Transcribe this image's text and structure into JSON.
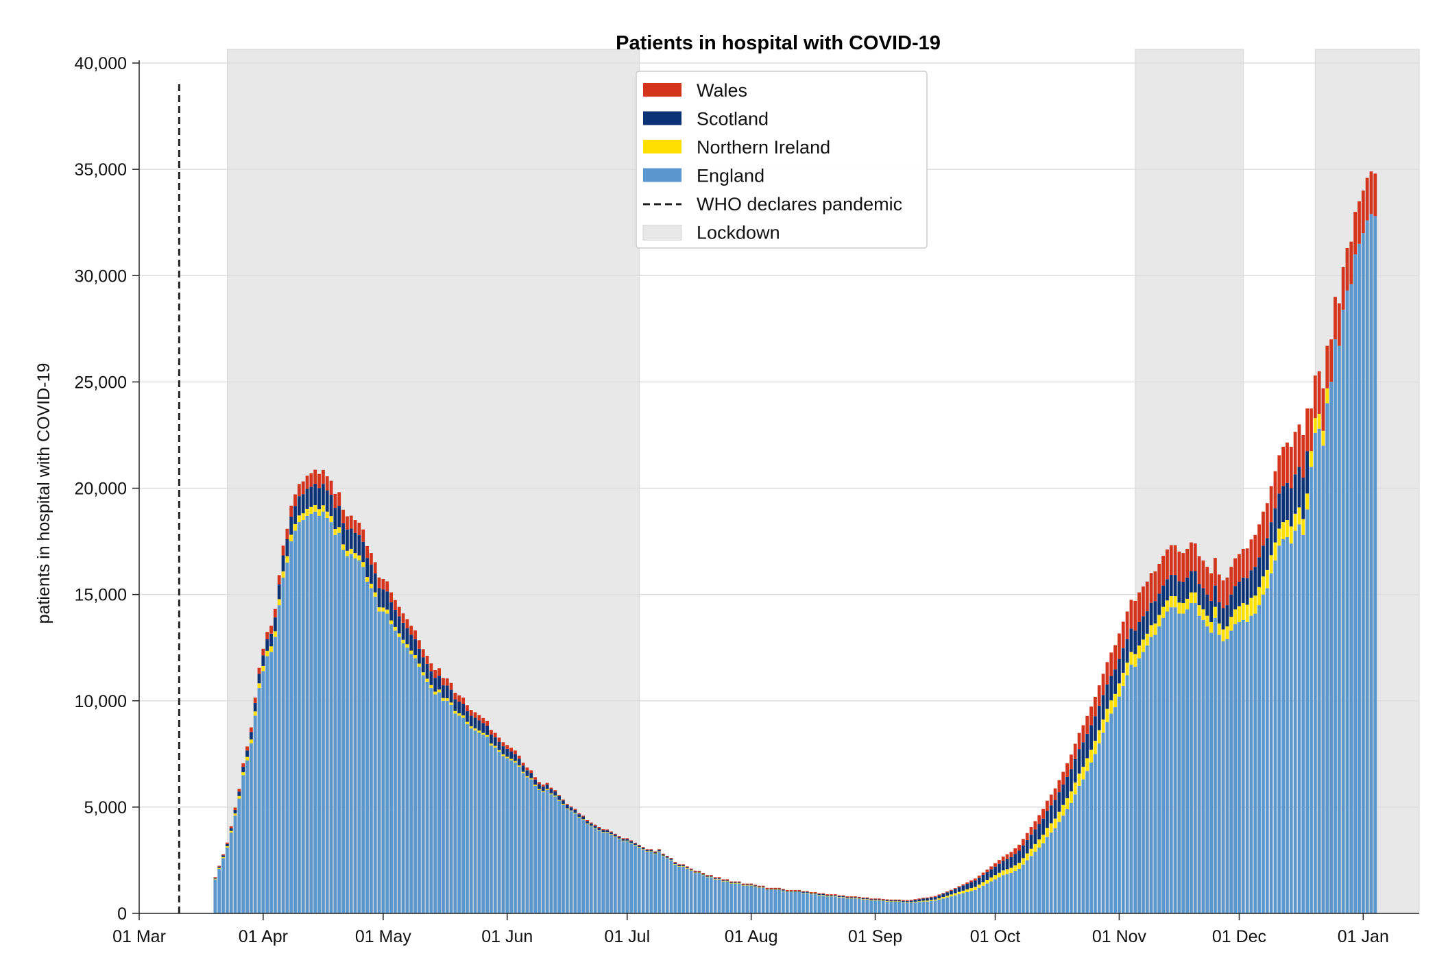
{
  "chart_data": {
    "type": "bar",
    "stacked": true,
    "title": "Patients in hospital with COVID-19",
    "xlabel": "",
    "ylabel": "patients in hospital with COVID-19",
    "ylim": [
      0,
      40000
    ],
    "yticks": [
      0,
      5000,
      10000,
      15000,
      20000,
      25000,
      30000,
      35000,
      40000
    ],
    "ytick_labels": [
      "0",
      "5,000",
      "10,000",
      "15,000",
      "20,000",
      "25,000",
      "30,000",
      "35,000",
      "40,000"
    ],
    "xlim": [
      "2020-03-01",
      "2021-01-15"
    ],
    "xticks": [
      "2020-03-01",
      "2020-04-01",
      "2020-05-01",
      "2020-06-01",
      "2020-07-01",
      "2020-08-01",
      "2020-09-01",
      "2020-10-01",
      "2020-11-01",
      "2020-12-01",
      "2021-01-01"
    ],
    "xtick_labels": [
      "01 Mar",
      "01 Apr",
      "01 May",
      "01 Jun",
      "01 Jul",
      "01 Aug",
      "01 Sep",
      "01 Oct",
      "01 Nov",
      "01 Dec",
      "01 Jan"
    ],
    "grid": "horizontal",
    "legend_position": "top-center",
    "legend": [
      "Wales",
      "Scotland",
      "Northern Ireland",
      "England",
      "WHO declares pandemic",
      "Lockdown"
    ],
    "who_pandemic_date": "2020-03-11",
    "lockdowns": [
      {
        "start": "2020-03-23",
        "end": "2020-07-04"
      },
      {
        "start": "2020-11-05",
        "end": "2020-12-02"
      },
      {
        "start": "2020-12-20",
        "end": "2021-01-15"
      }
    ],
    "colors": {
      "England": "#5b96cc",
      "Northern Ireland": "#ffe000",
      "Scotland": "#0b3275",
      "Wales": "#d4341c",
      "who_line": "#222222",
      "lockdown": "#e8e8e8",
      "grid": "#dddddd"
    },
    "series_order": [
      "England",
      "Northern Ireland",
      "Scotland",
      "Wales"
    ],
    "series": [
      {
        "name": "England",
        "start": "2020-03-20",
        "values": [
          1600,
          2100,
          2600,
          3100,
          3800,
          4600,
          5400,
          6500,
          7200,
          8000,
          9300,
          10600,
          11400,
          12100,
          12300,
          13000,
          14500,
          15800,
          16500,
          17500,
          18000,
          18400,
          18500,
          18700,
          18800,
          18900,
          18700,
          18900,
          18600,
          18400,
          17800,
          17900,
          17100,
          16800,
          16900,
          16700,
          16600,
          16300,
          15600,
          15300,
          14900,
          14200,
          14200,
          14100,
          13600,
          13300,
          13000,
          12700,
          12500,
          12200,
          12000,
          11600,
          11200,
          10900,
          10600,
          10300,
          10400,
          10000,
          10000,
          9800,
          9400,
          9300,
          9200,
          8900,
          8700,
          8600,
          8500,
          8400,
          8300,
          7900,
          7800,
          7600,
          7400,
          7300,
          7200,
          7100,
          6900,
          6600,
          6400,
          6300,
          6000,
          5800,
          5700,
          5800,
          5600,
          5500,
          5300,
          5100,
          4900,
          4800,
          4700,
          4500,
          4400,
          4200,
          4100,
          4000,
          3900,
          3800,
          3800,
          3700,
          3600,
          3500,
          3400,
          3400,
          3300,
          3200,
          3100,
          3000,
          2900,
          2900,
          2800,
          2900,
          2700,
          2600,
          2500,
          2300,
          2200,
          2200,
          2100,
          2000,
          1900,
          1900,
          1800,
          1700,
          1700,
          1600,
          1600,
          1500,
          1500,
          1400,
          1400,
          1400,
          1300,
          1300,
          1300,
          1250,
          1200,
          1200,
          1100,
          1100,
          1100,
          1100,
          1050,
          1000,
          1000,
          1000,
          1000,
          950,
          950,
          900,
          900,
          850,
          850,
          800,
          800,
          800,
          750,
          750,
          700,
          700,
          700,
          680,
          650,
          650,
          600,
          600,
          600,
          580,
          560,
          550,
          550,
          550,
          520,
          500,
          500,
          520,
          540,
          560,
          560,
          580,
          600,
          650,
          700,
          750,
          800,
          850,
          900,
          950,
          1000,
          1050,
          1100,
          1200,
          1300,
          1400,
          1500,
          1600,
          1700,
          1800,
          1850,
          1900,
          2000,
          2100,
          2300,
          2500,
          2700,
          2900,
          3100,
          3300,
          3600,
          3800,
          4000,
          4300,
          4600,
          4900,
          5200,
          5600,
          6000,
          6300,
          6700,
          7100,
          7500,
          8000,
          8500,
          9000,
          9400,
          9700,
          10200,
          10700,
          11200,
          11700,
          11600,
          12000,
          12300,
          12600,
          13000,
          13100,
          13500,
          13900,
          14200,
          14400,
          14400,
          14100,
          14100,
          14300,
          14600,
          14600,
          14000,
          13800,
          13500,
          13200,
          13900,
          13100,
          12800,
          12900,
          13300,
          13600,
          13700,
          13800,
          13700,
          14000,
          14100,
          14500,
          15000,
          15300,
          16000,
          16600,
          17300,
          17600,
          17700,
          17400,
          18000,
          18300,
          17800,
          19000,
          21000,
          22600,
          22800,
          22000,
          24000,
          25000,
          27000,
          26700,
          28400,
          29300,
          29600,
          31000,
          31500,
          32000,
          32600,
          32900,
          32800
        ]
      },
      {
        "name": "Northern Ireland",
        "start": "2020-03-20",
        "values": [
          30,
          40,
          50,
          60,
          80,
          100,
          120,
          140,
          160,
          180,
          200,
          220,
          240,
          250,
          260,
          270,
          280,
          290,
          300,
          310,
          310,
          320,
          320,
          320,
          320,
          310,
          310,
          300,
          300,
          290,
          280,
          270,
          260,
          260,
          250,
          250,
          240,
          230,
          220,
          210,
          200,
          200,
          190,
          190,
          180,
          180,
          170,
          170,
          160,
          160,
          150,
          150,
          140,
          140,
          140,
          130,
          130,
          130,
          120,
          120,
          120,
          110,
          110,
          110,
          100,
          100,
          100,
          90,
          90,
          90,
          80,
          80,
          80,
          70,
          70,
          70,
          60,
          60,
          60,
          55,
          55,
          50,
          50,
          50,
          45,
          45,
          40,
          40,
          40,
          40,
          35,
          35,
          35,
          35,
          30,
          30,
          30,
          30,
          30,
          30,
          25,
          25,
          25,
          25,
          25,
          25,
          25,
          20,
          20,
          20,
          20,
          20,
          20,
          20,
          20,
          20,
          20,
          20,
          20,
          20,
          20,
          20,
          20,
          20,
          20,
          20,
          20,
          20,
          20,
          20,
          20,
          20,
          20,
          20,
          20,
          20,
          20,
          20,
          20,
          20,
          20,
          20,
          20,
          20,
          20,
          20,
          20,
          20,
          20,
          20,
          20,
          20,
          20,
          20,
          20,
          20,
          20,
          20,
          20,
          20,
          20,
          20,
          20,
          20,
          20,
          20,
          20,
          20,
          20,
          20,
          20,
          20,
          20,
          25,
          25,
          30,
          30,
          35,
          40,
          45,
          50,
          60,
          70,
          80,
          90,
          100,
          110,
          120,
          130,
          140,
          150,
          160,
          170,
          180,
          190,
          200,
          210,
          220,
          230,
          240,
          260,
          280,
          300,
          320,
          340,
          360,
          380,
          400,
          420,
          440,
          460,
          480,
          500,
          520,
          540,
          560,
          580,
          600,
          600,
          600,
          620,
          620,
          620,
          620,
          620,
          620,
          620,
          620,
          600,
          600,
          600,
          600,
          580,
          560,
          560,
          540,
          540,
          520,
          520,
          520,
          520,
          520,
          500,
          500,
          500,
          500,
          500,
          500,
          500,
          500,
          520,
          540,
          560,
          600,
          650,
          700,
          750,
          800,
          820,
          840,
          850,
          850,
          850,
          850,
          850,
          850,
          800,
          800,
          800,
          800,
          800,
          800,
          750,
          750,
          750,
          700,
          700,
          700,
          700
        ]
      },
      {
        "name": "Scotland",
        "start": "2020-03-20",
        "values": [
          40,
          60,
          80,
          100,
          130,
          170,
          210,
          260,
          300,
          350,
          400,
          450,
          500,
          550,
          600,
          650,
          700,
          750,
          800,
          850,
          850,
          900,
          900,
          950,
          950,
          1000,
          1000,
          1000,
          1000,
          1000,
          1000,
          1000,
          1000,
          1000,
          950,
          950,
          950,
          950,
          900,
          900,
          900,
          900,
          850,
          850,
          850,
          800,
          800,
          800,
          750,
          750,
          750,
          700,
          700,
          700,
          650,
          650,
          650,
          600,
          600,
          600,
          550,
          550,
          550,
          500,
          500,
          500,
          480,
          460,
          440,
          420,
          400,
          390,
          380,
          370,
          350,
          330,
          310,
          290,
          270,
          250,
          240,
          230,
          220,
          210,
          200,
          190,
          180,
          170,
          160,
          150,
          140,
          130,
          120,
          110,
          100,
          100,
          90,
          90,
          80,
          80,
          80,
          70,
          70,
          70,
          70,
          60,
          60,
          60,
          60,
          60,
          60,
          60,
          50,
          50,
          50,
          50,
          50,
          50,
          50,
          50,
          50,
          40,
          40,
          40,
          40,
          40,
          40,
          40,
          40,
          40,
          40,
          40,
          40,
          40,
          40,
          40,
          40,
          40,
          40,
          40,
          40,
          40,
          40,
          40,
          40,
          40,
          40,
          40,
          40,
          40,
          40,
          40,
          40,
          40,
          40,
          40,
          40,
          40,
          40,
          40,
          40,
          40,
          40,
          40,
          40,
          40,
          40,
          40,
          40,
          40,
          40,
          40,
          50,
          60,
          70,
          80,
          90,
          100,
          110,
          120,
          130,
          140,
          150,
          160,
          180,
          200,
          220,
          240,
          260,
          280,
          300,
          320,
          340,
          360,
          380,
          400,
          420,
          450,
          480,
          510,
          540,
          570,
          600,
          630,
          660,
          690,
          720,
          760,
          800,
          840,
          880,
          920,
          960,
          1000,
          1050,
          1100,
          1150,
          1150,
          1150,
          1150,
          1150,
          1150,
          1150,
          1150,
          1150,
          1150,
          1150,
          1150,
          1100,
          1100,
          1100,
          1100,
          1100,
          1050,
          1050,
          1050,
          1000,
          1000,
          1000,
          1000,
          1000,
          1000,
          1000,
          1000,
          1000,
          1000,
          1000,
          1000,
          1000,
          1000,
          1000,
          1000,
          1000,
          1000,
          1050,
          1100,
          1150,
          1200,
          1250,
          1300,
          1350,
          1400,
          1450,
          1500,
          1550,
          1600,
          1650,
          1700,
          1750,
          1800,
          1850,
          1900,
          1950,
          2000
        ]
      },
      {
        "name": "Wales",
        "start": "2020-03-20",
        "values": [
          30,
          40,
          50,
          70,
          90,
          110,
          130,
          160,
          190,
          220,
          250,
          280,
          310,
          340,
          370,
          400,
          430,
          460,
          490,
          520,
          550,
          580,
          600,
          620,
          640,
          660,
          660,
          660,
          660,
          660,
          650,
          640,
          630,
          620,
          610,
          600,
          590,
          580,
          560,
          540,
          520,
          500,
          490,
          480,
          470,
          460,
          450,
          440,
          430,
          420,
          410,
          400,
          390,
          380,
          370,
          360,
          350,
          340,
          330,
          320,
          310,
          300,
          290,
          280,
          270,
          260,
          250,
          240,
          230,
          220,
          210,
          200,
          190,
          180,
          170,
          160,
          150,
          140,
          130,
          120,
          110,
          100,
          90,
          80,
          70,
          60,
          50,
          50,
          50,
          40,
          40,
          40,
          40,
          40,
          40,
          40,
          40,
          40,
          40,
          40,
          40,
          40,
          40,
          40,
          40,
          40,
          40,
          40,
          40,
          40,
          40,
          40,
          40,
          40,
          40,
          40,
          40,
          40,
          40,
          40,
          40,
          40,
          40,
          40,
          40,
          40,
          40,
          40,
          40,
          40,
          40,
          40,
          40,
          40,
          40,
          40,
          40,
          40,
          40,
          40,
          40,
          40,
          40,
          40,
          40,
          40,
          40,
          40,
          40,
          40,
          40,
          40,
          40,
          40,
          40,
          40,
          40,
          40,
          40,
          40,
          40,
          40,
          40,
          40,
          40,
          40,
          40,
          40,
          40,
          40,
          40,
          40,
          40,
          40,
          40,
          40,
          40,
          40,
          40,
          40,
          40,
          40,
          40,
          40,
          40,
          40,
          50,
          60,
          70,
          80,
          90,
          100,
          110,
          120,
          140,
          160,
          180,
          200,
          220,
          240,
          260,
          280,
          300,
          330,
          360,
          390,
          420,
          450,
          480,
          510,
          540,
          570,
          600,
          640,
          680,
          720,
          760,
          800,
          840,
          880,
          920,
          960,
          1000,
          1050,
          1100,
          1150,
          1200,
          1250,
          1300,
          1350,
          1400,
          1400,
          1400,
          1400,
          1400,
          1400,
          1400,
          1400,
          1400,
          1400,
          1400,
          1400,
          1350,
          1350,
          1350,
          1300,
          1300,
          1300,
          1300,
          1300,
          1300,
          1300,
          1300,
          1300,
          1300,
          1300,
          1300,
          1350,
          1400,
          1450,
          1500,
          1550,
          1600,
          1650,
          1700,
          1750,
          1800,
          1850,
          1900,
          1950,
          2000,
          2000,
          2000,
          2000,
          2000,
          2000,
          2000,
          2000,
          2000,
          2000,
          2000,
          2000,
          2000,
          2000,
          2000,
          2000,
          2000,
          2000,
          2000,
          2000,
          2000,
          2000,
          2000
        ]
      }
    ]
  }
}
